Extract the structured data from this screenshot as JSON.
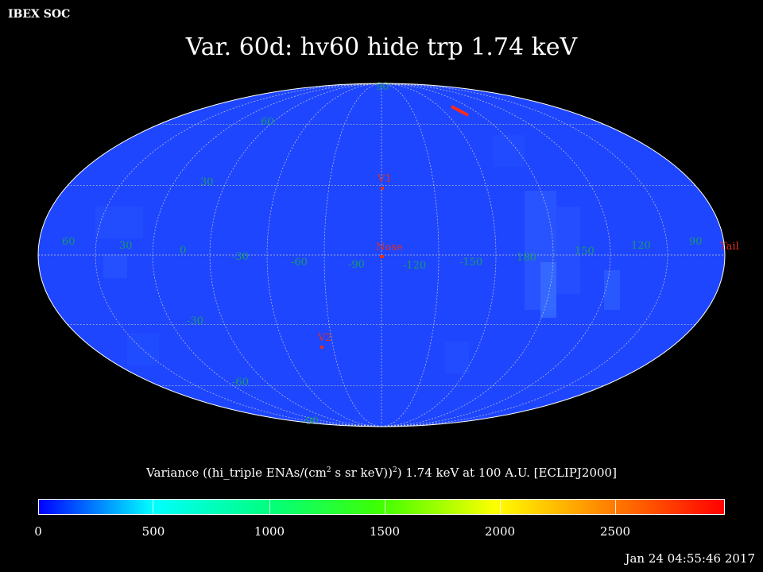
{
  "header": {
    "org": "IBEX SOC",
    "title": "Var. 60d: hv60 hide trp 1.74 keV"
  },
  "map": {
    "projection": "Mollweide (Aitoff-style) all-sky",
    "background_color": "#1e46ff",
    "graticule_color": "#c8c8c8",
    "lat_labels": [
      "90",
      "60",
      "30",
      "-30",
      "-60",
      "-90"
    ],
    "lon_labels": [
      "60",
      "30",
      "0",
      "-30",
      "-60",
      "-90",
      "-120",
      "-150",
      "180",
      "150",
      "120",
      "90"
    ],
    "markers": [
      {
        "name": "V1",
        "label": "V1"
      },
      {
        "name": "Nose",
        "label": "Nose"
      },
      {
        "name": "V2",
        "label": "V2"
      },
      {
        "name": "Tail",
        "label": "Tail"
      }
    ],
    "marker_color": "#e03020",
    "label_color": "#1a9a6a"
  },
  "colorbar": {
    "label_prefix": "Variance ((hi_triple ENAs/(cm",
    "label_sup1": "2",
    "label_mid": " s sr keV))",
    "label_sup2": "2",
    "label_suffix": ") 1.74 keV at 100 A.U. [ECLIPJ2000]",
    "ticks": [
      "0",
      "500",
      "1000",
      "1500",
      "2000",
      "2500"
    ],
    "colors": [
      "#0000ff",
      "#00ffff",
      "#00ff80",
      "#40ff00",
      "#ffff00",
      "#ff8000",
      "#ff0000"
    ]
  },
  "footer": {
    "timestamp": "Jan 24 04:55:46 2017"
  }
}
